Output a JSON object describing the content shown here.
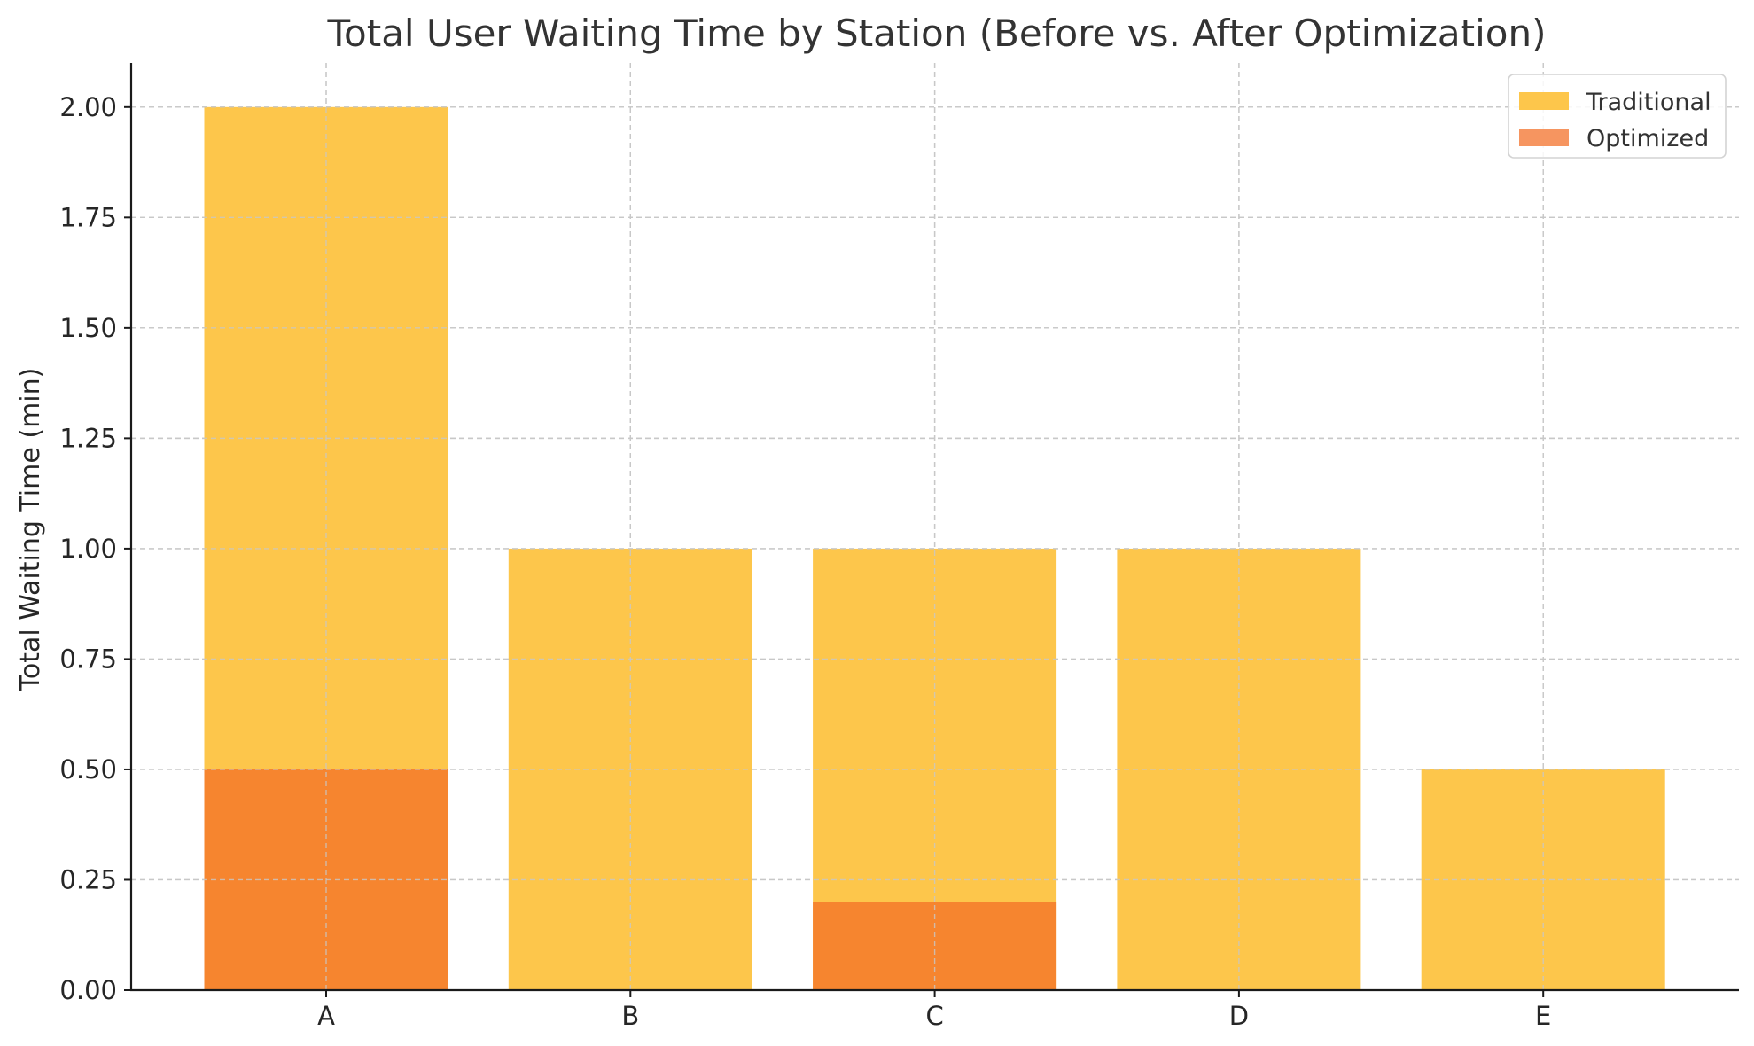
{
  "chart_data": {
    "type": "bar",
    "title": "Total User Waiting Time by Station (Before vs. After Optimization)",
    "xlabel": "",
    "ylabel": "Total Waiting Time (min)",
    "categories": [
      "A",
      "B",
      "C",
      "D",
      "E"
    ],
    "series": [
      {
        "name": "Traditional",
        "values": [
          2.0,
          1.0,
          1.0,
          1.0,
          0.5
        ],
        "color": "#fdc64b"
      },
      {
        "name": "Optimized",
        "values": [
          0.5,
          0.0,
          0.2,
          0.0,
          0.0
        ],
        "color": "#f6852f",
        "legend_color": "#f69560"
      }
    ],
    "overlap": true,
    "ylim": [
      0,
      2.1
    ],
    "yticks": [
      0.0,
      0.25,
      0.5,
      0.75,
      1.0,
      1.25,
      1.5,
      1.75,
      2.0
    ],
    "ytick_labels": [
      "0.00",
      "0.25",
      "0.50",
      "0.75",
      "1.00",
      "1.25",
      "1.50",
      "1.75",
      "2.00"
    ],
    "grid": true,
    "legend_position": "top-right"
  }
}
